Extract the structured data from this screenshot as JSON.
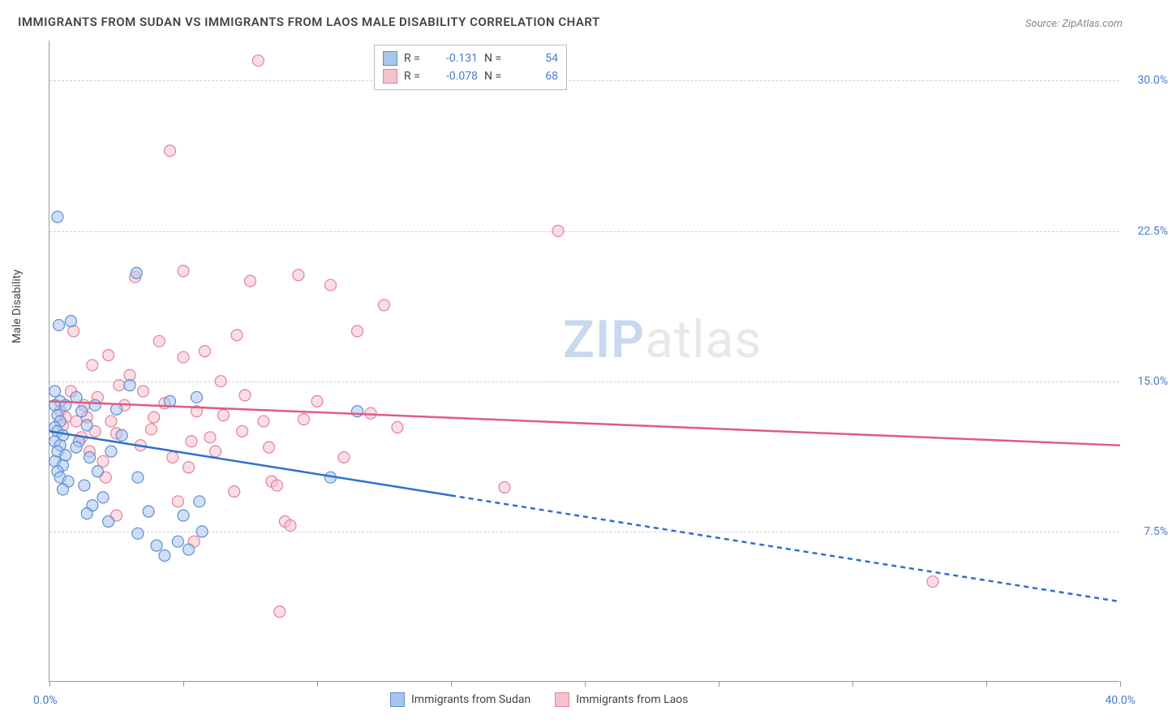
{
  "title": "IMMIGRANTS FROM SUDAN VS IMMIGRANTS FROM LAOS MALE DISABILITY CORRELATION CHART",
  "source": "Source: ZipAtlas.com",
  "watermark": {
    "part1": "ZIP",
    "part2": "atlas"
  },
  "y_axis_label": "Male Disability",
  "x_axis": {
    "min": 0,
    "max": 40,
    "label_min": "0.0%",
    "label_max": "40.0%",
    "ticks": [
      0,
      5,
      10,
      15,
      20,
      25,
      30,
      35,
      40
    ]
  },
  "y_axis": {
    "min": 0,
    "max": 32,
    "grid_values": [
      7.5,
      15.0,
      22.5,
      30.0
    ],
    "grid_labels": [
      "7.5%",
      "15.0%",
      "22.5%",
      "30.0%"
    ]
  },
  "colors": {
    "series1_fill": "#a9c5eb",
    "series1_stroke": "#5b8fd6",
    "series2_fill": "#f4c2cd",
    "series2_stroke": "#e77f9a",
    "line1": "#2f6fd0",
    "line2": "#e05a84",
    "grid": "#d0d0d0",
    "axis": "#999999",
    "tick_text": "#4a7bc8",
    "title_text": "#444444"
  },
  "legend_top": [
    {
      "series": 1,
      "r_label": "R =",
      "r_value": "-0.131",
      "n_label": "N =",
      "n_value": "54"
    },
    {
      "series": 2,
      "r_label": "R =",
      "r_value": "-0.078",
      "n_label": "N =",
      "n_value": "68"
    }
  ],
  "legend_bottom": [
    {
      "series": 1,
      "label": "Immigrants from Sudan"
    },
    {
      "series": 2,
      "label": "Immigrants from Laos"
    }
  ],
  "trend_lines": {
    "series1": {
      "x1": 0,
      "y1": 12.5,
      "x_solid_end": 15,
      "y_solid_end": 9.3,
      "x2": 40,
      "y2": 4.0
    },
    "series2": {
      "x1": 0,
      "y1": 14.0,
      "x2": 40,
      "y2": 11.8
    }
  },
  "marker_radius": 7,
  "marker_opacity": 0.55,
  "series1_points": [
    [
      0.3,
      23.2
    ],
    [
      0.2,
      14.5
    ],
    [
      0.4,
      14.0
    ],
    [
      0.2,
      13.8
    ],
    [
      0.3,
      13.3
    ],
    [
      0.4,
      13.0
    ],
    [
      0.2,
      12.7
    ],
    [
      0.3,
      12.5
    ],
    [
      0.5,
      12.3
    ],
    [
      0.2,
      12.0
    ],
    [
      0.4,
      11.8
    ],
    [
      0.3,
      11.5
    ],
    [
      0.6,
      11.3
    ],
    [
      0.2,
      11.0
    ],
    [
      0.35,
      17.8
    ],
    [
      0.5,
      10.8
    ],
    [
      0.3,
      10.5
    ],
    [
      0.4,
      10.2
    ],
    [
      0.7,
      10.0
    ],
    [
      0.5,
      9.6
    ],
    [
      1.0,
      14.2
    ],
    [
      1.2,
      13.5
    ],
    [
      1.4,
      12.8
    ],
    [
      1.1,
      12.0
    ],
    [
      1.5,
      11.2
    ],
    [
      1.8,
      10.5
    ],
    [
      1.3,
      9.8
    ],
    [
      1.6,
      8.8
    ],
    [
      2.0,
      9.2
    ],
    [
      2.2,
      8.0
    ],
    [
      2.5,
      13.6
    ],
    [
      2.7,
      12.3
    ],
    [
      3.0,
      14.8
    ],
    [
      3.25,
      20.4
    ],
    [
      3.3,
      10.2
    ],
    [
      3.3,
      7.4
    ],
    [
      3.7,
      8.5
    ],
    [
      4.0,
      6.8
    ],
    [
      4.3,
      6.3
    ],
    [
      4.5,
      14.0
    ],
    [
      4.8,
      7.0
    ],
    [
      5.0,
      8.3
    ],
    [
      5.2,
      6.6
    ],
    [
      5.5,
      14.2
    ],
    [
      5.6,
      9.0
    ],
    [
      5.7,
      7.5
    ],
    [
      10.5,
      10.2
    ],
    [
      11.5,
      13.5
    ],
    [
      0.8,
      18.0
    ],
    [
      1.7,
      13.8
    ],
    [
      2.3,
      11.5
    ],
    [
      0.6,
      13.8
    ],
    [
      1.0,
      11.7
    ],
    [
      1.4,
      8.4
    ]
  ],
  "series2_points": [
    [
      0.4,
      13.5
    ],
    [
      0.6,
      13.2
    ],
    [
      0.5,
      12.8
    ],
    [
      0.8,
      14.5
    ],
    [
      1.0,
      13.0
    ],
    [
      1.2,
      12.2
    ],
    [
      1.3,
      13.8
    ],
    [
      1.5,
      11.5
    ],
    [
      1.7,
      12.5
    ],
    [
      1.8,
      14.2
    ],
    [
      2.0,
      11.0
    ],
    [
      2.2,
      16.3
    ],
    [
      2.3,
      13.0
    ],
    [
      2.5,
      8.3
    ],
    [
      2.5,
      12.4
    ],
    [
      2.8,
      13.8
    ],
    [
      3.0,
      15.3
    ],
    [
      3.2,
      20.2
    ],
    [
      3.5,
      14.5
    ],
    [
      3.8,
      12.6
    ],
    [
      4.1,
      17.0
    ],
    [
      4.3,
      13.9
    ],
    [
      4.5,
      26.5
    ],
    [
      5.0,
      20.5
    ],
    [
      5.3,
      12.0
    ],
    [
      5.5,
      13.5
    ],
    [
      5.8,
      16.5
    ],
    [
      6.0,
      12.2
    ],
    [
      6.4,
      15.0
    ],
    [
      6.5,
      13.3
    ],
    [
      6.9,
      9.5
    ],
    [
      7.0,
      17.3
    ],
    [
      7.3,
      14.3
    ],
    [
      7.5,
      20.0
    ],
    [
      7.8,
      31.0
    ],
    [
      8.0,
      13.0
    ],
    [
      8.3,
      10.0
    ],
    [
      8.5,
      9.8
    ],
    [
      8.6,
      3.5
    ],
    [
      8.8,
      8.0
    ],
    [
      9.0,
      7.8
    ],
    [
      9.3,
      20.3
    ],
    [
      9.5,
      13.1
    ],
    [
      10.0,
      14.0
    ],
    [
      10.5,
      19.8
    ],
    [
      11.0,
      11.2
    ],
    [
      11.5,
      17.5
    ],
    [
      12.0,
      13.4
    ],
    [
      12.5,
      18.8
    ],
    [
      13.0,
      12.7
    ],
    [
      17.0,
      9.7
    ],
    [
      19.0,
      22.5
    ],
    [
      33.0,
      5.0
    ],
    [
      0.9,
      17.5
    ],
    [
      1.4,
      13.2
    ],
    [
      2.1,
      10.2
    ],
    [
      3.4,
      11.8
    ],
    [
      4.6,
      11.2
    ],
    [
      5.2,
      10.7
    ],
    [
      6.2,
      11.5
    ],
    [
      7.2,
      12.5
    ],
    [
      8.2,
      11.7
    ],
    [
      2.6,
      14.8
    ],
    [
      3.9,
      13.2
    ],
    [
      4.8,
      9.0
    ],
    [
      1.6,
      15.8
    ],
    [
      5.4,
      7.0
    ],
    [
      5.0,
      16.2
    ]
  ]
}
